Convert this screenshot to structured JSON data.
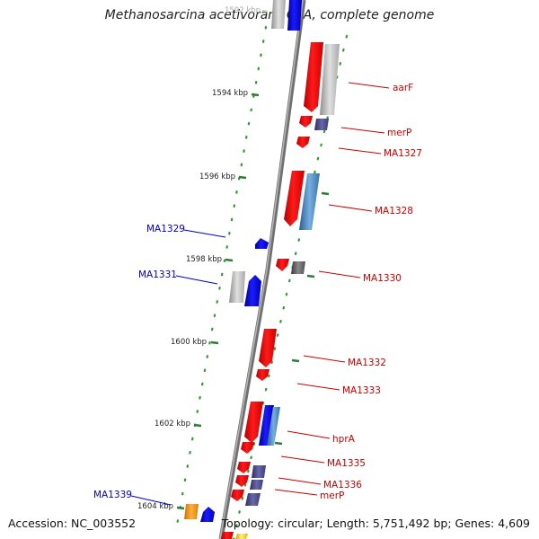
{
  "title": "Methanosarcina acetivorans C2A, complete genome",
  "footer": {
    "accession": "Accession: NC_003552",
    "summary": "Topology: circular; Length: 5,751,492 bp; Genes: 4,609"
  },
  "colors": {
    "backbone": "#8c8c8c",
    "forward_gene": "#ff0000",
    "reverse_gene": "#0000ff",
    "forward_label": "#cc0000",
    "reverse_label": "#0000cc",
    "dots": "#339933",
    "ticks": "#2e7d32"
  },
  "scale_ticks": [
    {
      "label": "1592 kbp",
      "faded": true
    },
    {
      "label": "1594 kbp"
    },
    {
      "label": "1596 kbp"
    },
    {
      "label": "1598 kbp"
    },
    {
      "label": "1600 kbp"
    },
    {
      "label": "1602 kbp"
    },
    {
      "label": "1604 kbp"
    }
  ],
  "gene_labels": [
    {
      "text": "aarF",
      "strand": "forward"
    },
    {
      "text": "merP",
      "strand": "forward"
    },
    {
      "text": "MA1327",
      "strand": "forward"
    },
    {
      "text": "MA1328",
      "strand": "forward"
    },
    {
      "text": "MA1329",
      "strand": "reverse"
    },
    {
      "text": "MA1330",
      "strand": "forward"
    },
    {
      "text": "MA1331",
      "strand": "reverse"
    },
    {
      "text": "MA1332",
      "strand": "forward"
    },
    {
      "text": "MA1333",
      "strand": "forward"
    },
    {
      "text": "hprA",
      "strand": "forward"
    },
    {
      "text": "MA1335",
      "strand": "forward"
    },
    {
      "text": "MA1336",
      "strand": "forward"
    },
    {
      "text": "merP",
      "strand": "forward"
    },
    {
      "text": "MA1339",
      "strand": "reverse"
    }
  ]
}
